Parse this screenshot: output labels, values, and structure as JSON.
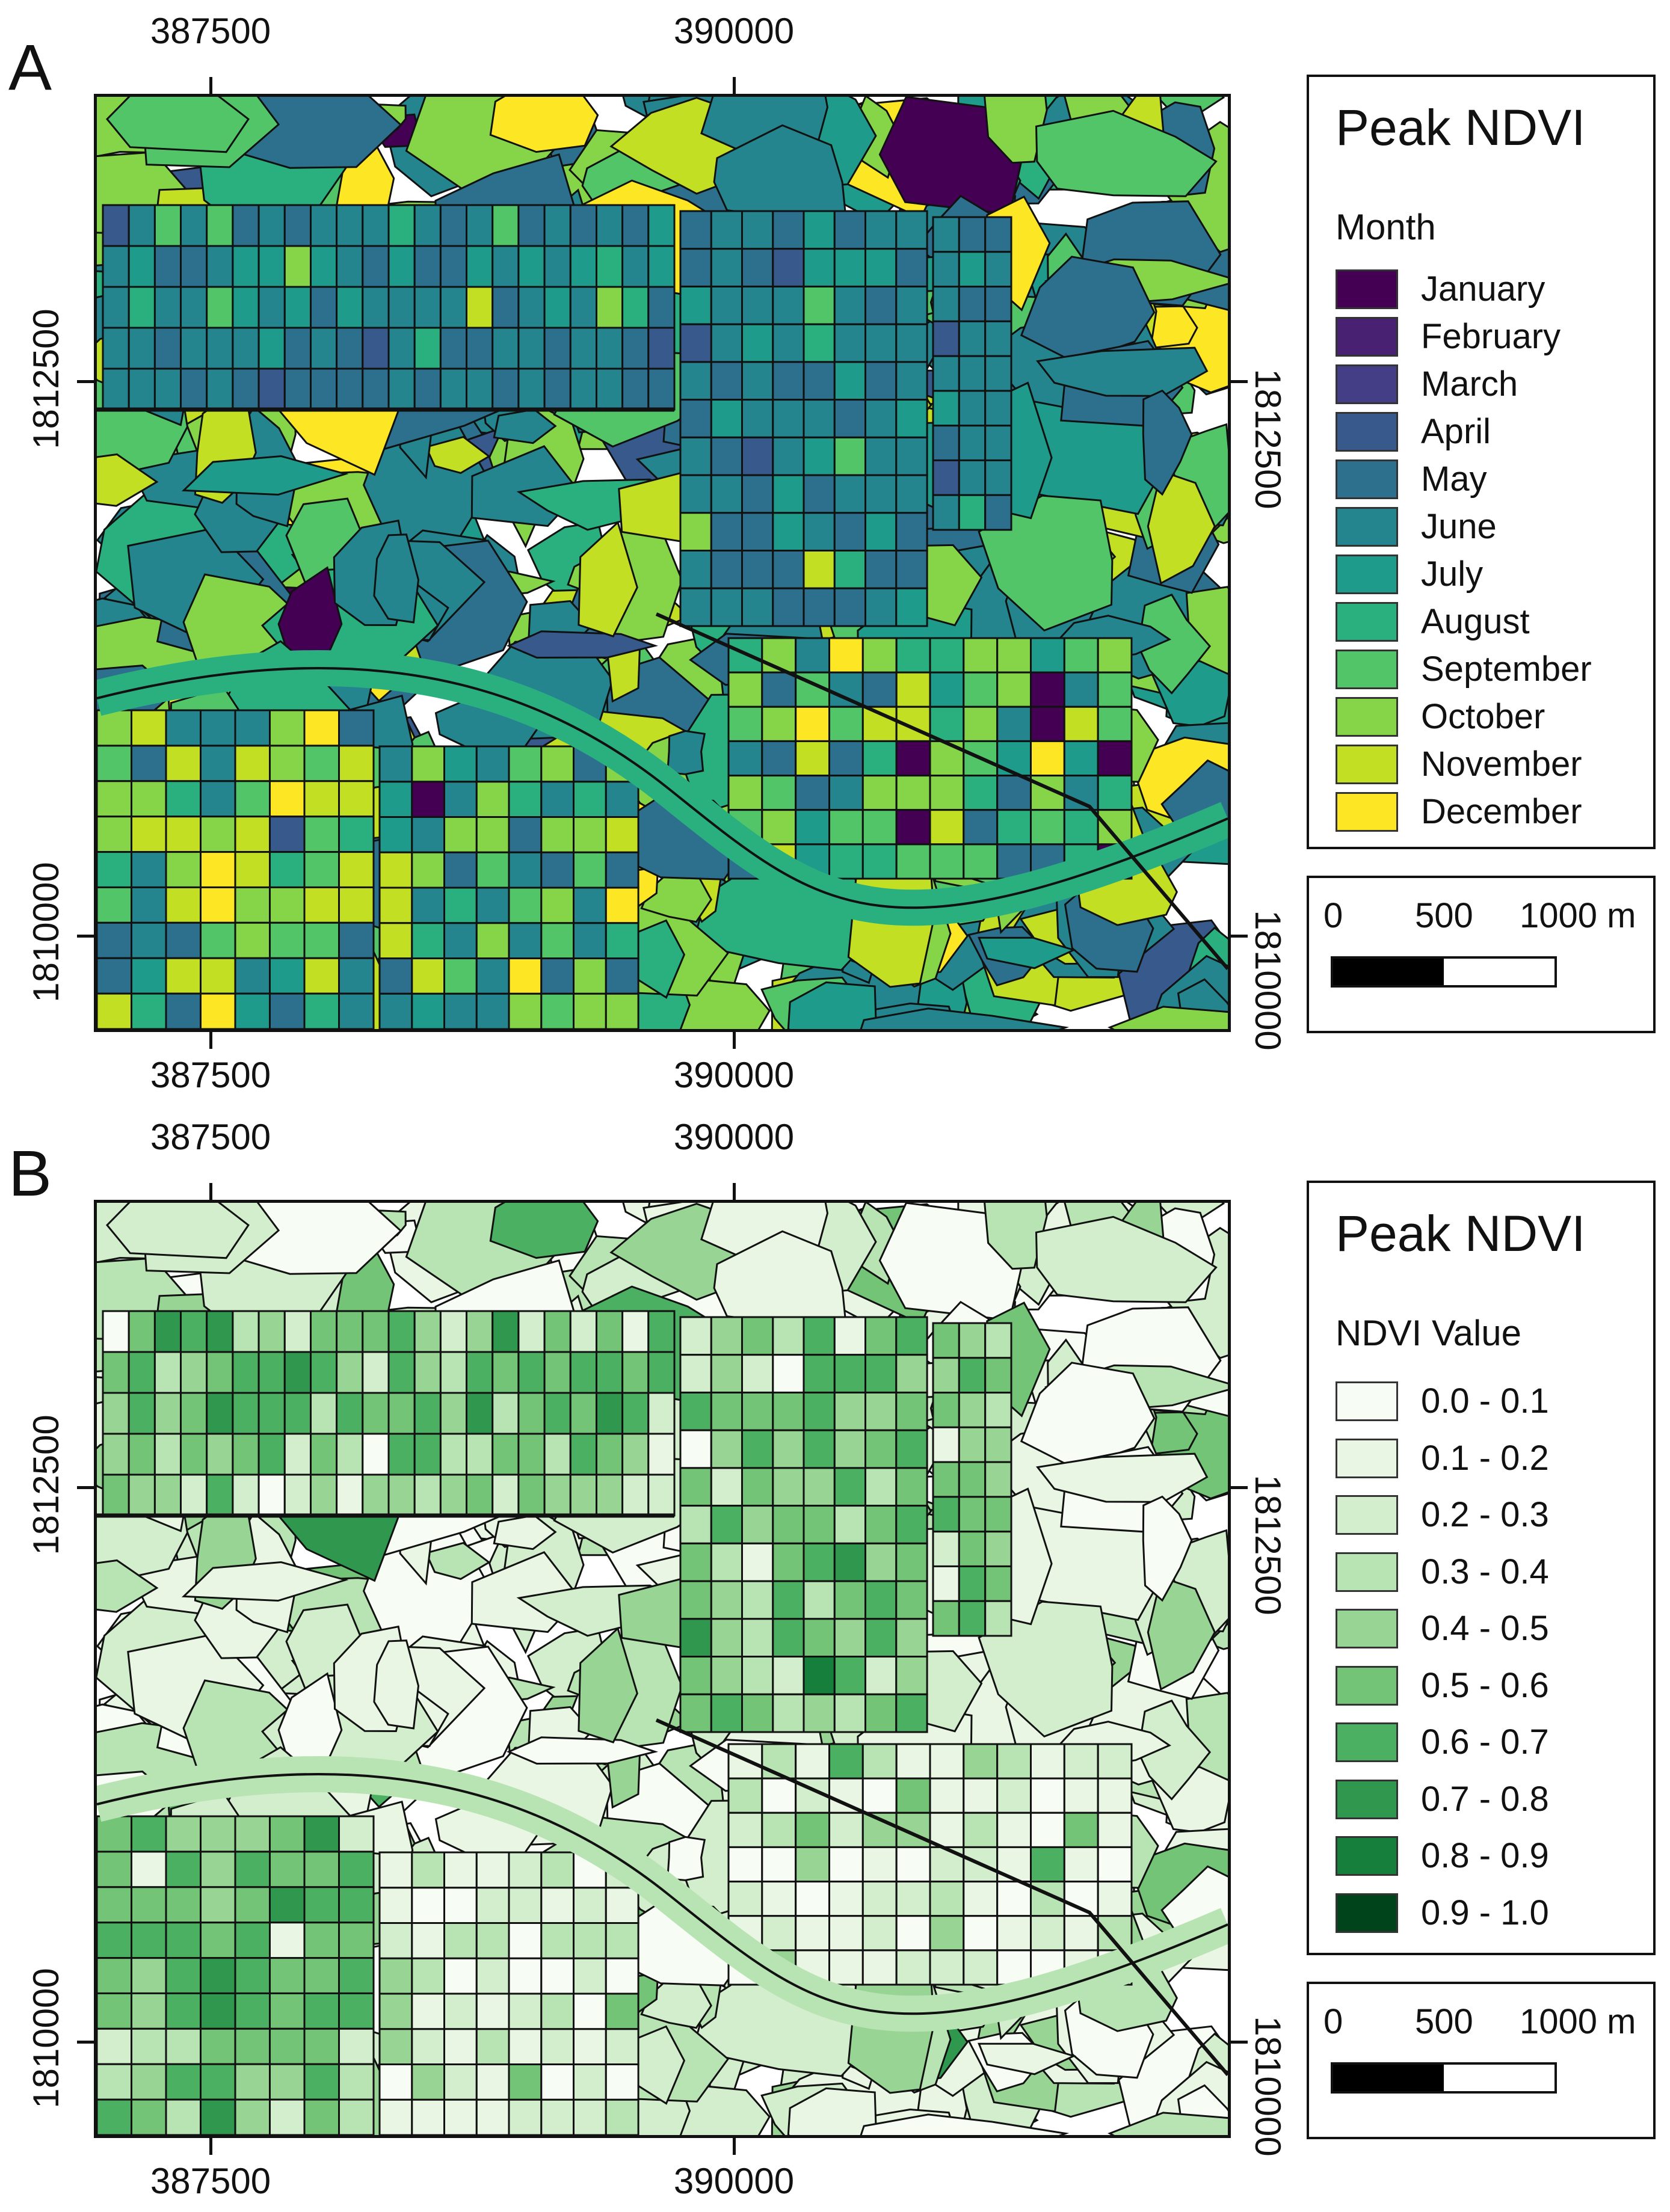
{
  "panels": [
    {
      "letter": "A",
      "style": "month",
      "x_ticks": [
        "387500",
        "390000"
      ],
      "y_ticks": [
        "1812500",
        "1810000"
      ],
      "legend": {
        "title": "Peak NDVI",
        "subtitle": "Month",
        "items": [
          {
            "label": "January",
            "color": "#440154"
          },
          {
            "label": "February",
            "color": "#482173"
          },
          {
            "label": "March",
            "color": "#433e85"
          },
          {
            "label": "April",
            "color": "#38598c"
          },
          {
            "label": "May",
            "color": "#2d708e"
          },
          {
            "label": "June",
            "color": "#25858e"
          },
          {
            "label": "July",
            "color": "#1e9b8a"
          },
          {
            "label": "August",
            "color": "#2ab07f"
          },
          {
            "label": "September",
            "color": "#52c569"
          },
          {
            "label": "October",
            "color": "#86d549"
          },
          {
            "label": "November",
            "color": "#c2df23"
          },
          {
            "label": "December",
            "color": "#fde725"
          }
        ]
      },
      "scale": {
        "labels": [
          "0",
          "500",
          "1000 m"
        ]
      }
    },
    {
      "letter": "B",
      "style": "ndvi",
      "x_ticks": [
        "387500",
        "390000"
      ],
      "y_ticks": [
        "1812500",
        "1810000"
      ],
      "legend": {
        "title": "Peak NDVI",
        "subtitle": "NDVI Value",
        "items": [
          {
            "label": "0.0 - 0.1",
            "color": "#f7fcf5"
          },
          {
            "label": "0.1 - 0.2",
            "color": "#e8f6e3"
          },
          {
            "label": "0.2 - 0.3",
            "color": "#d3eecd"
          },
          {
            "label": "0.3 - 0.4",
            "color": "#b8e3b2"
          },
          {
            "label": "0.4 - 0.5",
            "color": "#98d594"
          },
          {
            "label": "0.5 - 0.6",
            "color": "#73c476"
          },
          {
            "label": "0.6 - 0.7",
            "color": "#4bb062"
          },
          {
            "label": "0.7 - 0.8",
            "color": "#2f974e"
          },
          {
            "label": "0.8 - 0.9",
            "color": "#157f3b"
          },
          {
            "label": "0.9 - 1.0",
            "color": "#00441b"
          }
        ]
      },
      "scale": {
        "labels": [
          "0",
          "500",
          "1000 m"
        ]
      }
    }
  ]
}
